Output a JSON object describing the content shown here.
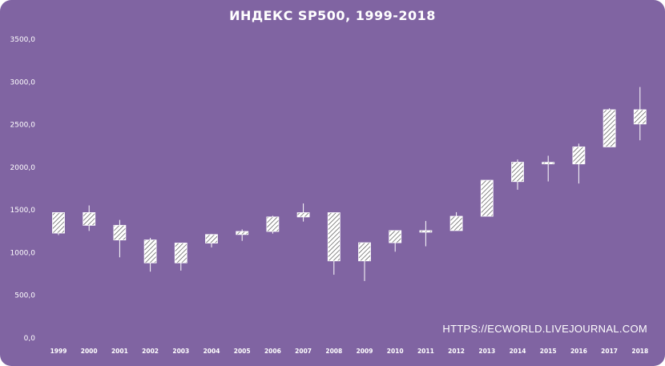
{
  "chart_data": {
    "type": "candlestick",
    "title": "ИНДЕКС SP500,  1999-2018",
    "ylim": [
      0,
      3500
    ],
    "yticks": [
      "0,0",
      "500,0",
      "1000,0",
      "1500,0",
      "2000,0",
      "2500,0",
      "3000,0",
      "3500,0"
    ],
    "ytick_values": [
      0,
      500,
      1000,
      1500,
      2000,
      2500,
      3000,
      3500
    ],
    "categories": [
      "1999",
      "2000",
      "2001",
      "2002",
      "2003",
      "2004",
      "2005",
      "2006",
      "2007",
      "2008",
      "2009",
      "2010",
      "2011",
      "2012",
      "2013",
      "2014",
      "2015",
      "2016",
      "2017",
      "2018"
    ],
    "open": [
      1229,
      1469,
      1320,
      1148,
      880,
      1112,
      1212,
      1248,
      1418,
      1468,
      903,
      1116,
      1258,
      1258,
      1426,
      1832,
      2058,
      2039,
      2239,
      2674
    ],
    "high": [
      1470,
      1553,
      1383,
      1173,
      1112,
      1217,
      1272,
      1432,
      1576,
      1472,
      1119,
      1260,
      1371,
      1474,
      1849,
      2091,
      2135,
      2277,
      2691,
      2940
    ],
    "low": [
      1206,
      1254,
      945,
      777,
      789,
      1061,
      1138,
      1223,
      1364,
      741,
      667,
      1011,
      1074,
      1258,
      1426,
      1737,
      1834,
      1810,
      2239,
      2316
    ],
    "close": [
      1469,
      1320,
      1148,
      880,
      1112,
      1212,
      1248,
      1418,
      1468,
      903,
      1116,
      1258,
      1258,
      1426,
      1848,
      2059,
      2044,
      2239,
      2674,
      2507
    ],
    "colors": {
      "background": "#8064a2",
      "candle_fill": "#ffffff",
      "candle_hatch": "#4a4a4a",
      "text": "#ffffff"
    }
  },
  "watermark": "HTTPS://ECWORLD.LIVEJOURNAL.COM"
}
